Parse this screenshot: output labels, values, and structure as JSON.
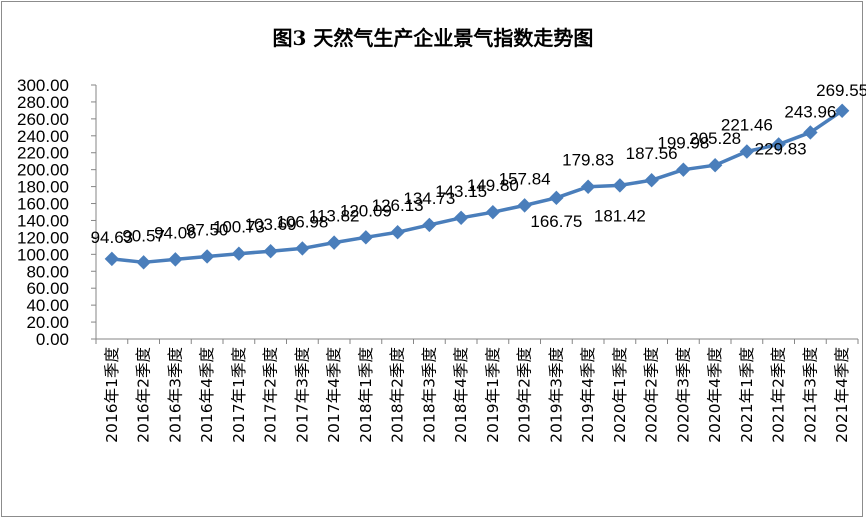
{
  "chart_data": {
    "type": "line",
    "title": "图3  天然气生产企业景气指数走势图",
    "xlabel": "",
    "ylabel": "",
    "ylim": [
      0,
      300
    ],
    "ytick_step": 20,
    "grid": false,
    "legend": "none",
    "categories": [
      "2016年1季度",
      "2016年2季度",
      "2016年3季度",
      "2016年4季度",
      "2017年1季度",
      "2017年2季度",
      "2017年3季度",
      "2017年4季度",
      "2018年1季度",
      "2018年2季度",
      "2018年3季度",
      "2018年4季度",
      "2019年1季度",
      "2019年2季度",
      "2019年3季度",
      "2019年4季度",
      "2020年1季度",
      "2020年2季度",
      "2020年3季度",
      "2020年4季度",
      "2021年1季度",
      "2021年2季度",
      "2021年3季度",
      "2021年4季度"
    ],
    "series": [
      {
        "values": [
          94.63,
          90.57,
          94.06,
          97.5,
          100.73,
          103.69,
          106.98,
          113.82,
          120.09,
          126.13,
          134.73,
          143.15,
          149.8,
          157.84,
          166.75,
          179.83,
          181.42,
          187.56,
          199.98,
          205.28,
          221.46,
          229.83,
          243.96,
          269.55
        ],
        "data_labels": [
          "94.63",
          "90.57",
          "94.06",
          "97.50",
          "100.73",
          "103.69",
          "106.98",
          "113.82",
          "120.09",
          "126.13",
          "134.73",
          "143.15",
          "149.80",
          "157.84",
          "166.75",
          "179.83",
          "181.42",
          "187.56",
          "199.98",
          "205.28",
          "221.46",
          "229.83",
          "243.96",
          "269.55"
        ],
        "color": "#4a7ebb"
      }
    ]
  }
}
